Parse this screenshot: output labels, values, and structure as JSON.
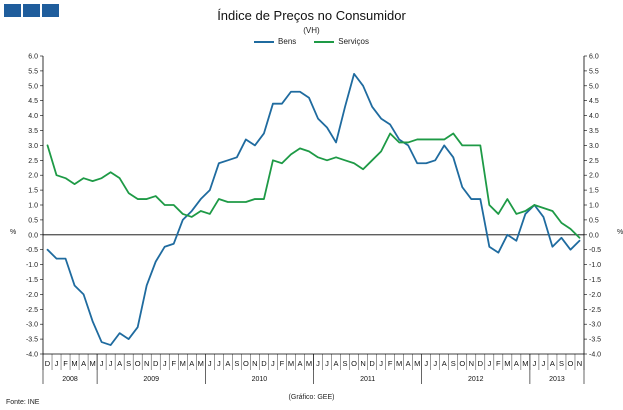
{
  "header": {
    "logo_icon": "three-blue-squares-logo",
    "brand_color": "#1f5d9c"
  },
  "chart_data": {
    "type": "line",
    "title": "Índice de Preços no Consumidor",
    "subtitle": "(VH)",
    "ylabel_left": "%",
    "ylabel_right": "%",
    "ylim": [
      -4.0,
      6.0
    ],
    "ytick_step": 0.5,
    "yticks": [
      "6.0",
      "5.5",
      "5.0",
      "4.5",
      "4.0",
      "3.5",
      "3.0",
      "2.5",
      "2.0",
      "1.5",
      "1.0",
      "0.5",
      "0.0",
      "-0.5",
      "-1.0",
      "-1.5",
      "-2.0",
      "-2.5",
      "-3.0",
      "-3.5",
      "-4.0"
    ],
    "grid": false,
    "legend_position": "top-center",
    "month_labels": [
      "D",
      "J",
      "F",
      "M",
      "A",
      "M",
      "J",
      "J",
      "A",
      "S",
      "O",
      "N",
      "D",
      "J",
      "F",
      "M",
      "A",
      "M",
      "J",
      "J",
      "A",
      "S",
      "O",
      "N",
      "D",
      "J",
      "F",
      "M",
      "A",
      "M",
      "J",
      "J",
      "A",
      "S",
      "O",
      "N",
      "D",
      "J",
      "F",
      "M",
      "A",
      "M",
      "J",
      "J",
      "A",
      "S",
      "O",
      "N",
      "D",
      "J",
      "F",
      "M",
      "A",
      "M",
      "J",
      "J",
      "A",
      "S",
      "O",
      "N"
    ],
    "year_labels": [
      {
        "label": "2008",
        "month_index": 0
      },
      {
        "label": "2009",
        "month_index": 6
      },
      {
        "label": "2010",
        "month_index": 18
      },
      {
        "label": "2011",
        "month_index": 30
      },
      {
        "label": "2012",
        "month_index": 42
      },
      {
        "label": "2013",
        "month_index": 54
      }
    ],
    "series": [
      {
        "name": "Bens",
        "color": "#1f6b9f",
        "values": [
          -0.5,
          -0.8,
          -0.8,
          -1.7,
          -2.0,
          -2.9,
          -3.6,
          -3.7,
          -3.3,
          -3.5,
          -3.1,
          -1.7,
          -0.9,
          -0.4,
          -0.3,
          0.5,
          0.8,
          1.2,
          1.5,
          2.4,
          2.5,
          2.6,
          3.2,
          3.0,
          3.4,
          4.4,
          4.4,
          4.8,
          4.8,
          4.6,
          3.9,
          3.6,
          3.1,
          4.3,
          5.4,
          5.0,
          4.3,
          3.9,
          3.7,
          3.2,
          3.0,
          2.4,
          2.4,
          2.5,
          3.0,
          2.6,
          1.6,
          1.2,
          1.2,
          -0.4,
          -0.6,
          0.0,
          -0.2,
          0.7,
          1.0,
          0.6,
          -0.4,
          -0.1,
          -0.5,
          -0.2
        ]
      },
      {
        "name": "Serviços",
        "color": "#1e9a46",
        "values": [
          3.0,
          2.0,
          1.9,
          1.7,
          1.9,
          1.8,
          1.9,
          2.1,
          1.9,
          1.4,
          1.2,
          1.2,
          1.3,
          1.0,
          1.0,
          0.7,
          0.6,
          0.8,
          0.7,
          1.2,
          1.1,
          1.1,
          1.1,
          1.2,
          1.2,
          2.5,
          2.4,
          2.7,
          2.9,
          2.8,
          2.6,
          2.5,
          2.6,
          2.5,
          2.4,
          2.2,
          2.5,
          2.8,
          3.4,
          3.1,
          3.1,
          3.2,
          3.2,
          3.2,
          3.2,
          3.4,
          3.0,
          3.0,
          3.0,
          1.0,
          0.7,
          1.2,
          0.7,
          0.8,
          1.0,
          0.9,
          0.8,
          0.4,
          0.2,
          -0.1
        ]
      }
    ]
  },
  "footer": {
    "source": "Fonte: INE",
    "credit": "(Gráfico: GEE)"
  }
}
